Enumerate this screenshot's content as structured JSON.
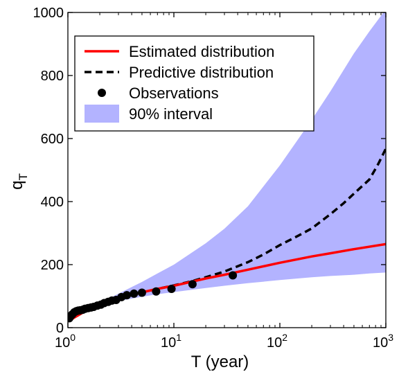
{
  "chart_data": {
    "type": "line",
    "xlabel": "T (year)",
    "ylabel_base": "q",
    "ylabel_sub": "T",
    "xscale": "log",
    "xlim": [
      1,
      1000
    ],
    "ylim": [
      0,
      1000
    ],
    "x_ticks": [
      {
        "base": "10",
        "exp": "0"
      },
      {
        "base": "10",
        "exp": "1"
      },
      {
        "base": "10",
        "exp": "2"
      },
      {
        "base": "10",
        "exp": "3"
      }
    ],
    "y_ticks": [
      "0",
      "200",
      "400",
      "600",
      "800",
      "1000"
    ],
    "grid": false,
    "legend_position": "top-left",
    "colors": {
      "estimated": "#ff0000",
      "predictive": "#000000",
      "observations": "#000000",
      "interval": "#b3b3ff"
    },
    "legend": [
      {
        "label": "Estimated distribution",
        "style": "solid-line"
      },
      {
        "label": "Predictive distribution",
        "style": "dashed-line"
      },
      {
        "label": "Observations",
        "style": "marker"
      },
      {
        "label": "90% interval",
        "style": "patch"
      }
    ],
    "series": [
      {
        "name": "Estimated distribution",
        "style": "solid",
        "x": [
          1,
          1.5,
          2,
          3,
          5,
          7,
          10,
          20,
          30,
          50,
          100,
          200,
          300,
          500,
          1000
        ],
        "y": [
          20,
          55,
          72,
          93,
          112,
          123,
          133,
          156,
          168,
          184,
          206,
          226,
          236,
          249,
          265
        ]
      },
      {
        "name": "Predictive distribution",
        "style": "dashed",
        "x": [
          1,
          1.5,
          2,
          3,
          5,
          7,
          10,
          15,
          20,
          30,
          50,
          70,
          100,
          150,
          200,
          300,
          400,
          500,
          700,
          850,
          1000
        ],
        "y": [
          20,
          55,
          72,
          93,
          112,
          123,
          134,
          148,
          160,
          178,
          208,
          232,
          262,
          292,
          315,
          360,
          395,
          425,
          470,
          520,
          568
        ]
      },
      {
        "name": "Observations",
        "style": "markers",
        "x": [
          1.03,
          1.06,
          1.1,
          1.15,
          1.2,
          1.25,
          1.3,
          1.38,
          1.45,
          1.55,
          1.65,
          1.75,
          1.9,
          2.05,
          2.2,
          2.4,
          2.6,
          2.85,
          3.2,
          3.6,
          4.2,
          5,
          6.8,
          9.5,
          15,
          36
        ],
        "y": [
          30,
          37,
          42,
          49,
          52,
          54,
          55,
          57,
          60,
          62,
          64,
          66,
          70,
          73,
          78,
          82,
          86,
          88,
          97,
          103,
          108,
          111,
          115,
          123,
          138,
          166
        ]
      }
    ],
    "interval": {
      "name": "90% interval",
      "x": [
        1,
        1.5,
        2,
        3,
        5,
        7,
        10,
        20,
        30,
        50,
        100,
        200,
        300,
        500,
        700,
        1000
      ],
      "lower": [
        20,
        50,
        65,
        84,
        98,
        106,
        113,
        126,
        133,
        141,
        151,
        160,
        164,
        168,
        172,
        175
      ],
      "upper": [
        20,
        58,
        78,
        108,
        145,
        172,
        200,
        268,
        314,
        385,
        515,
        660,
        750,
        870,
        940,
        1010
      ]
    }
  }
}
